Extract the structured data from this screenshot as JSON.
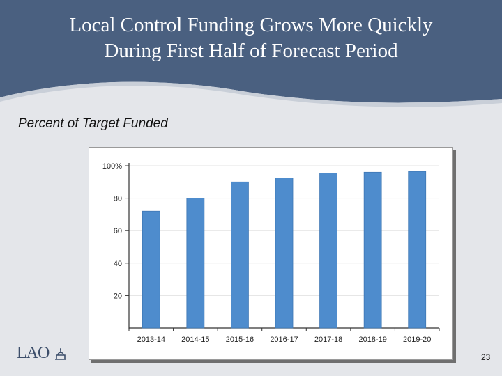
{
  "slide": {
    "title_line1": "Local Control Funding Grows More Quickly",
    "title_line2": "During First Half of Forecast Period",
    "subtitle": "Percent of Target Funded",
    "logo_text": "LAO",
    "page_number": "23"
  },
  "colors": {
    "header": "#4a6080",
    "bar": "#4e8ccd",
    "bar_edge": "#3e77b4"
  },
  "chart_data": {
    "type": "bar",
    "title": "Percent of Target Funded",
    "xlabel": "",
    "ylabel": "",
    "categories": [
      "2013-14",
      "2014-15",
      "2015-16",
      "2016-17",
      "2017-18",
      "2018-19",
      "2019-20"
    ],
    "values": [
      72,
      80,
      90,
      92.5,
      95.5,
      96,
      96.5
    ],
    "ylim": [
      0,
      100
    ],
    "yticks": [
      20,
      40,
      60,
      80,
      100
    ],
    "ytick_labels": [
      "20",
      "40",
      "60",
      "80",
      "100%"
    ],
    "grid": true
  }
}
